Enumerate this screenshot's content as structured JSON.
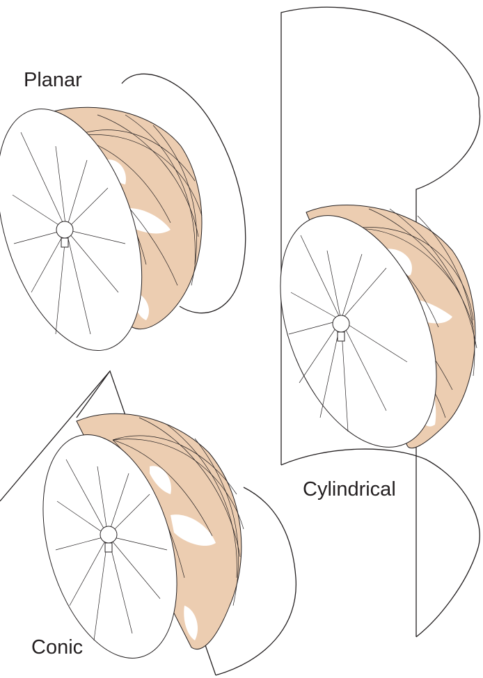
{
  "labels": {
    "planar": "Planar",
    "conic": "Conic",
    "cylindrical": "Cylindrical"
  },
  "colors": {
    "land": "#eccdb1",
    "ocean": "#ffffff",
    "line": "#231f20"
  }
}
